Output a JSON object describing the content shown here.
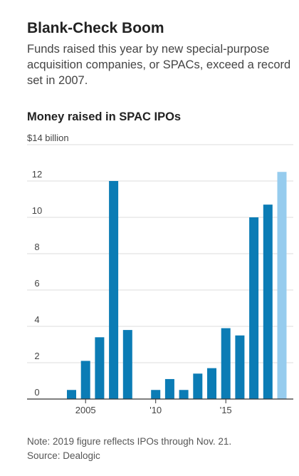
{
  "header": {
    "title": "Blank-Check Boom",
    "subtitle": "Funds raised this year by new special-purpose acquisition companies, or SPACs, exceed a record set in 2007."
  },
  "chart_data": {
    "type": "bar",
    "title": "Money raised in SPAC IPOs",
    "y_unit_label": "$14 billion",
    "ylim": [
      0,
      14
    ],
    "yticks": [
      0,
      2,
      4,
      6,
      8,
      10,
      12
    ],
    "grid": true,
    "years": [
      2004,
      2005,
      2006,
      2007,
      2008,
      2009,
      2010,
      2011,
      2012,
      2013,
      2014,
      2015,
      2016,
      2017,
      2018,
      2019
    ],
    "values": [
      0.5,
      2.1,
      3.4,
      12.0,
      3.8,
      0.0,
      0.5,
      1.1,
      0.5,
      1.4,
      1.7,
      3.9,
      3.5,
      10.0,
      10.7,
      12.5
    ],
    "x_tick_labels": [
      {
        "year": 2005,
        "label": "2005"
      },
      {
        "year": 2010,
        "label": "'10"
      },
      {
        "year": 2015,
        "label": "'15"
      }
    ],
    "colors": {
      "bar": "#0b7cb5",
      "bar_highlight": "#96ccee",
      "grid": "#dddddd",
      "axis": "#333333",
      "tick_text": "#444444"
    },
    "highlight_year": 2019
  },
  "footnote": {
    "note": "Note: 2019 figure reflects IPOs through Nov. 21.",
    "source": "Source: Dealogic"
  }
}
